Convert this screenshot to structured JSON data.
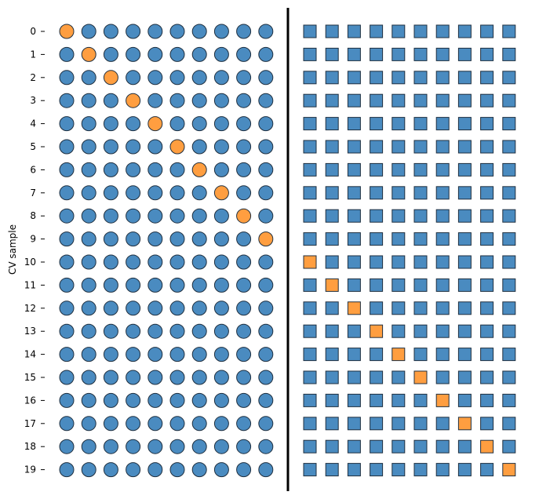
{
  "chart_data": {
    "type": "scatter",
    "title": "",
    "ylabel": "CV sample",
    "xlabel": "",
    "rows": [
      "0",
      "1",
      "2",
      "3",
      "4",
      "5",
      "6",
      "7",
      "8",
      "9",
      "10",
      "11",
      "12",
      "13",
      "14",
      "15",
      "16",
      "17",
      "18",
      "19"
    ],
    "panels": [
      {
        "marker": "circle",
        "columns": 10,
        "highlight_column_by_row": [
          0,
          1,
          2,
          3,
          4,
          5,
          6,
          7,
          8,
          9,
          null,
          null,
          null,
          null,
          null,
          null,
          null,
          null,
          null,
          null
        ]
      },
      {
        "marker": "square",
        "columns": 10,
        "highlight_column_by_row": [
          null,
          null,
          null,
          null,
          null,
          null,
          null,
          null,
          null,
          null,
          0,
          1,
          2,
          3,
          4,
          5,
          6,
          7,
          8,
          9
        ]
      }
    ],
    "colors": {
      "default": "#4a8bc0",
      "highlight": "#ff9e40",
      "edge": "#1f2f3f",
      "divider": "#000000"
    },
    "grid": false,
    "legend": "none"
  }
}
